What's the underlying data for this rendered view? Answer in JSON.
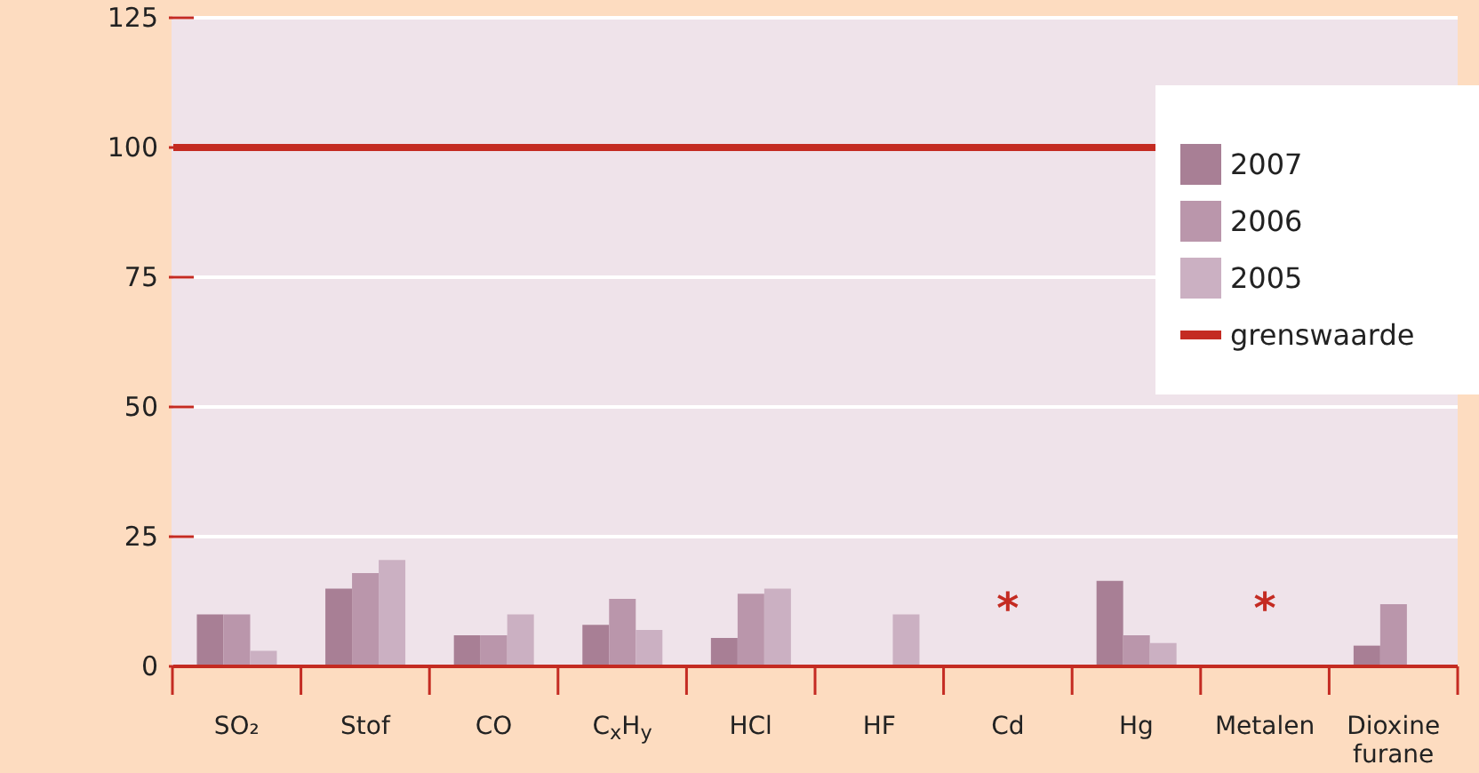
{
  "chart_data": {
    "type": "bar",
    "categories": [
      "SO₂",
      "Stof",
      "CO",
      "C$_{x}$H$_{y}$",
      "HCl",
      "HF",
      "Cd",
      "Hg",
      "Metalen",
      "Dioxine furane"
    ],
    "series": [
      {
        "name": "2007",
        "color": "#a87f95",
        "values": [
          10,
          15,
          6,
          8,
          5.5,
          null,
          null,
          16.5,
          null,
          4
        ]
      },
      {
        "name": "2006",
        "color": "#ba96ab",
        "values": [
          10,
          18,
          6,
          13,
          14,
          null,
          null,
          6,
          null,
          12
        ]
      },
      {
        "name": "2005",
        "color": "#cbb0c2",
        "values": [
          3,
          20.5,
          10,
          7,
          15,
          10,
          null,
          4.5,
          null,
          null
        ]
      }
    ],
    "ylim": [
      0,
      125
    ],
    "yticks": [
      0,
      25,
      50,
      75,
      100,
      125
    ],
    "grid": "y",
    "legend": "top right",
    "ref_lines": [
      {
        "axis": "y",
        "value": 100,
        "label": "grenswaarde",
        "color": "#c42b22"
      }
    ],
    "annotations": [
      "*",
      "*"
    ]
  }
}
